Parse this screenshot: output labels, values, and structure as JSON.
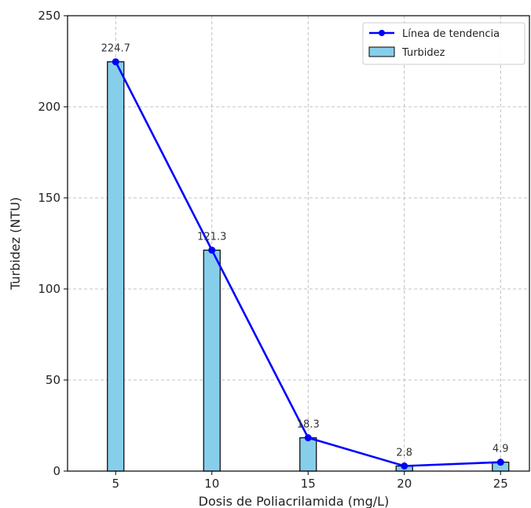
{
  "chart_data": {
    "type": "bar",
    "x": [
      5,
      10,
      15,
      20,
      25
    ],
    "series": [
      {
        "name": "Turbidez",
        "kind": "bar",
        "values": [
          224.7,
          121.3,
          18.3,
          2.8,
          4.9
        ],
        "color": "#87ceeb",
        "edge_color": "#000000"
      },
      {
        "name": "Línea de tendencia",
        "kind": "line",
        "values": [
          224.7,
          121.3,
          18.3,
          2.8,
          4.9
        ],
        "color": "#0000ff",
        "marker": "circle"
      }
    ],
    "data_labels": [
      "224.7",
      "121.3",
      "18.3",
      "2.8",
      "4.9"
    ],
    "xlabel": "Dosis de Poliacrilamida (mg/L)",
    "ylabel": "Turbidez (NTU)",
    "xticks": [
      "5",
      "10",
      "15",
      "20",
      "25"
    ],
    "yticks": [
      "0",
      "50",
      "100",
      "150",
      "200",
      "250"
    ],
    "xlim": [
      2.5,
      26.5
    ],
    "ylim": [
      0,
      250
    ],
    "grid": true,
    "legend_position": "top-right"
  }
}
